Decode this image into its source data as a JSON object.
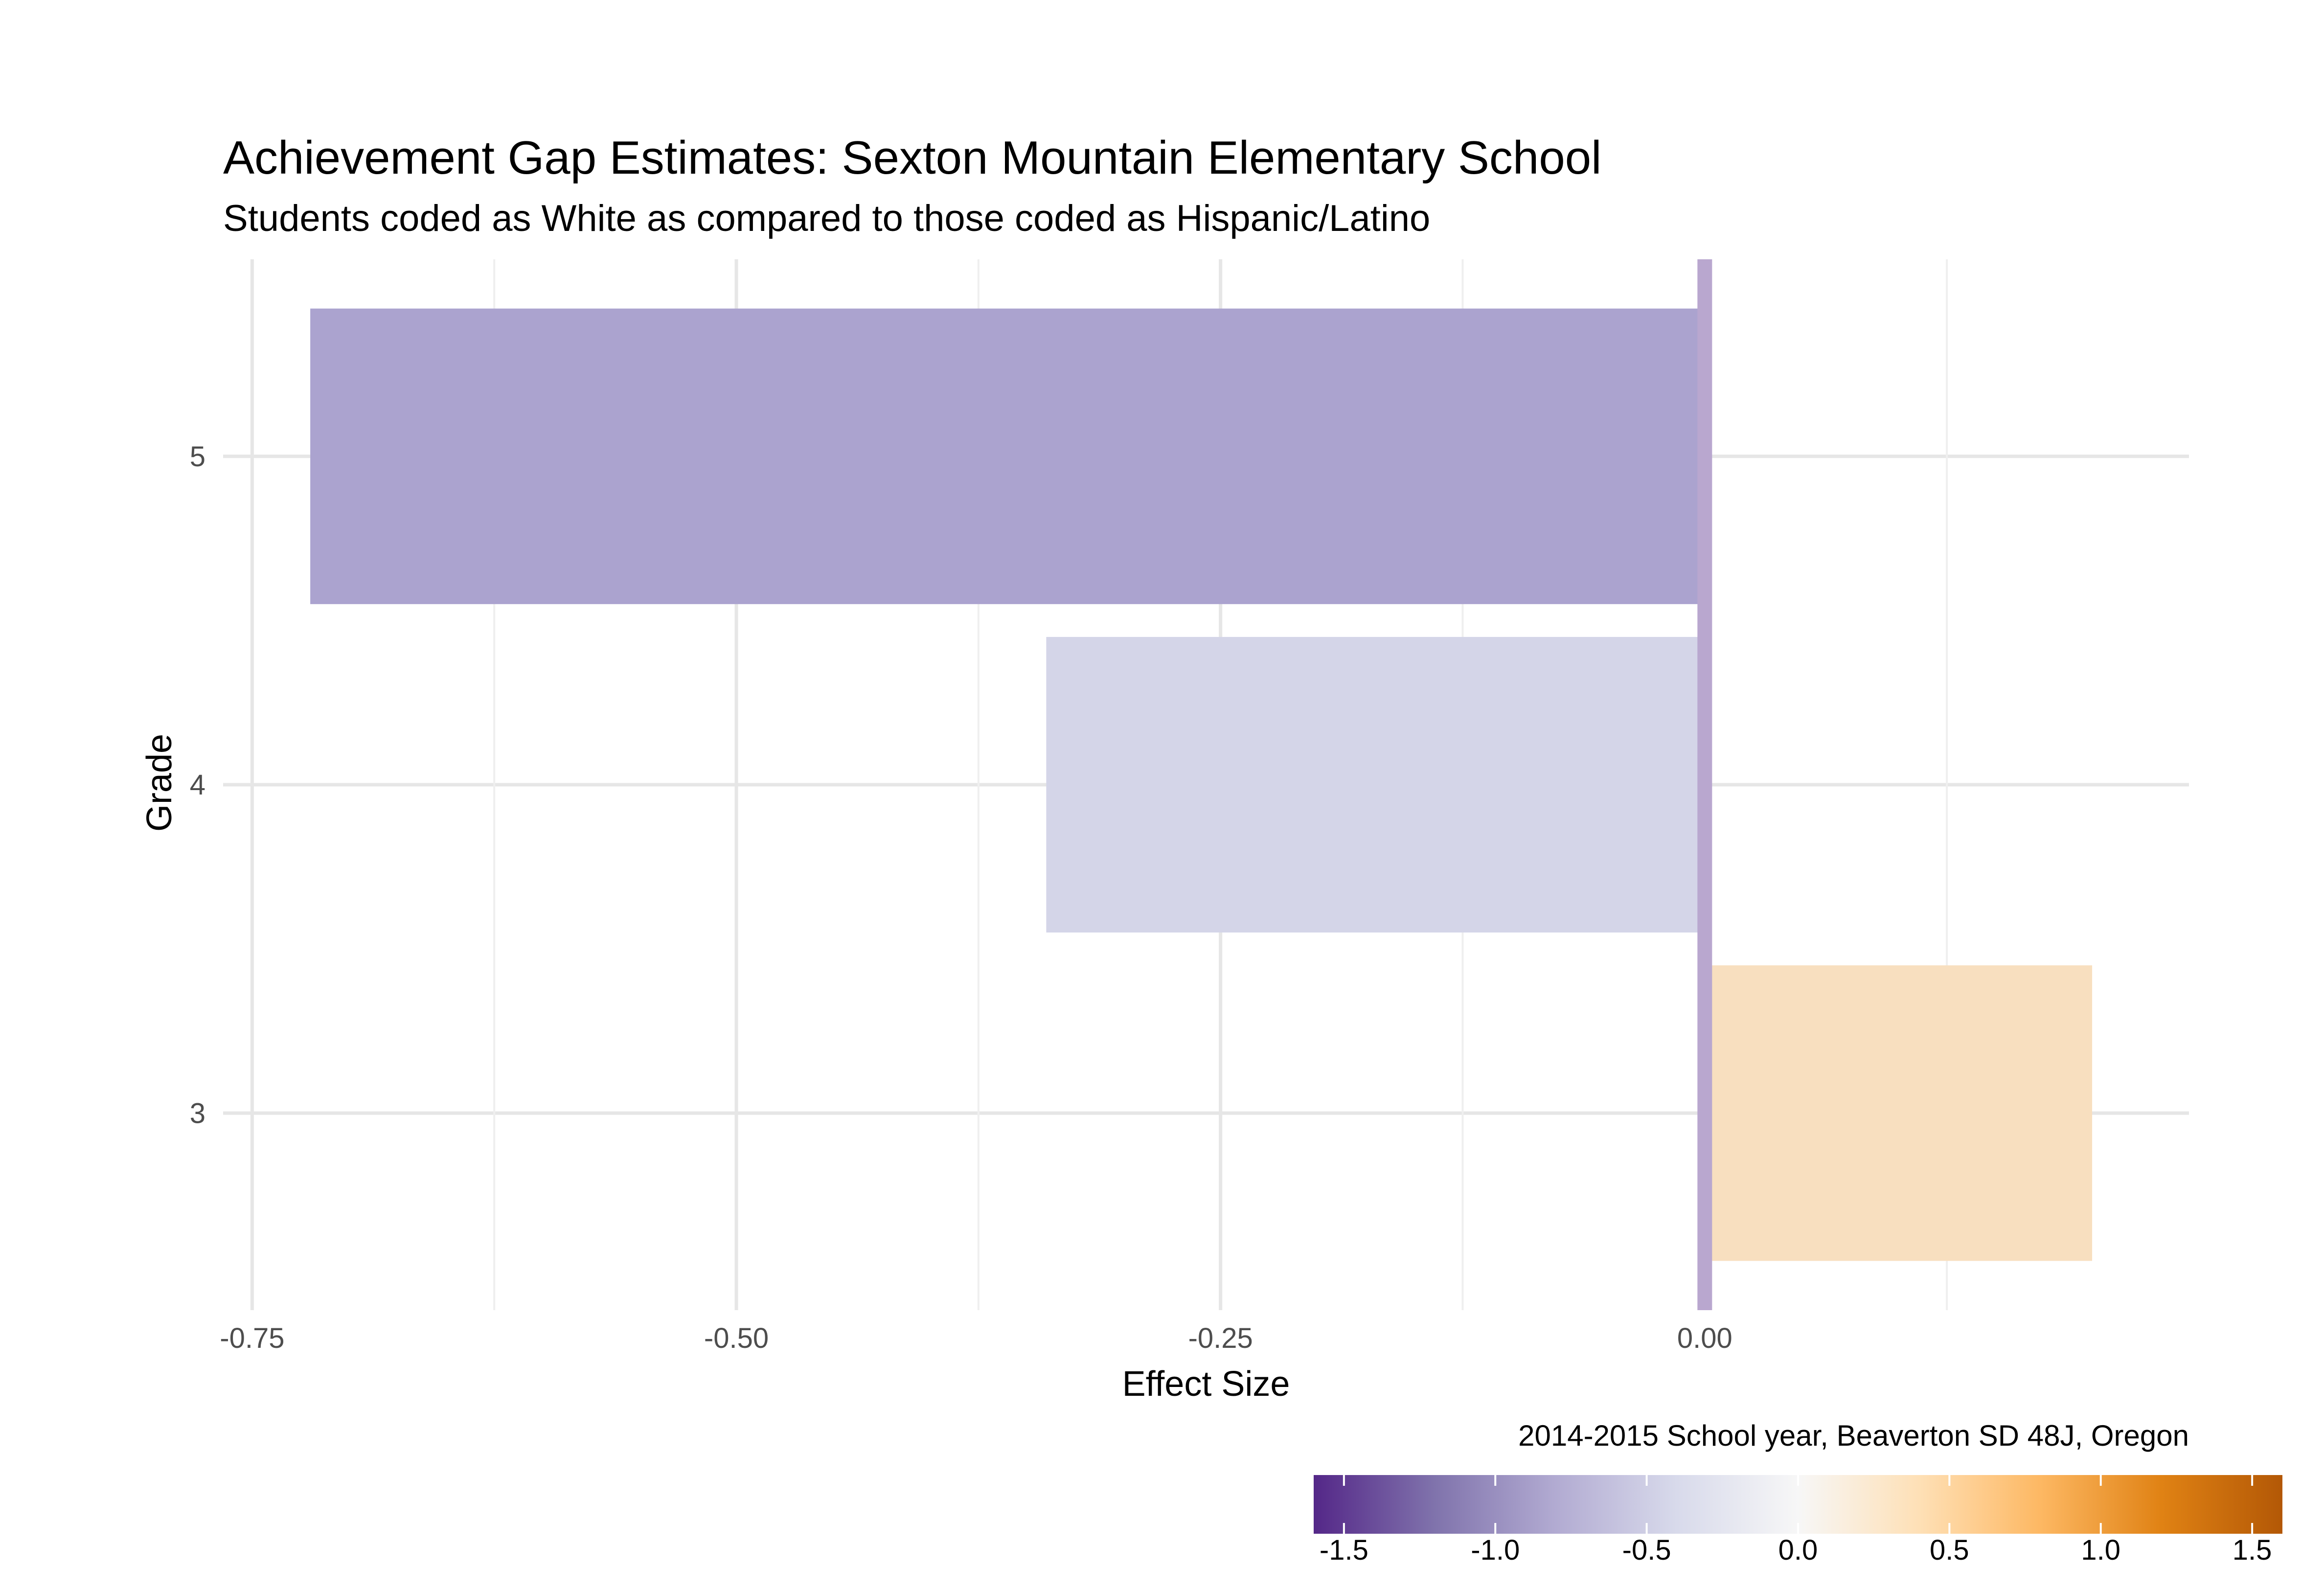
{
  "chart_data": {
    "type": "bar",
    "orientation": "horizontal",
    "title": "Achievement Gap Estimates: Sexton Mountain Elementary School",
    "subtitle": "Students coded as White as compared to those coded as Hispanic/Latino",
    "caption": "2014-2015 School year, Beaverton SD 48J, Oregon",
    "xlabel": "Effect Size",
    "ylabel": "Grade",
    "categories": [
      "3",
      "4",
      "5"
    ],
    "values": [
      0.2,
      -0.34,
      -0.72
    ],
    "bar_colors": [
      "#f8dfbf",
      "#d4d5e8",
      "#aba3cf"
    ],
    "xlim": [
      -0.765,
      0.25
    ],
    "x_ticks": [
      -0.75,
      -0.5,
      -0.25,
      0.0
    ],
    "x_tick_labels": [
      "-0.75",
      "-0.50",
      "-0.25",
      "0.00"
    ],
    "x_minor_ticks": [
      -0.625,
      -0.375,
      -0.125,
      0.125
    ],
    "reference_line": {
      "x": 0,
      "color": "#b9a7cf"
    },
    "grid": true,
    "legend": {
      "type": "colorbar",
      "position": "bottom-right",
      "range": [
        -1.6,
        1.6
      ],
      "ticks": [
        -1.5,
        -1.0,
        -0.5,
        0.0,
        0.5,
        1.0,
        1.5
      ],
      "tick_labels": [
        "-1.5",
        "-1.0",
        "-0.5",
        "0.0",
        "0.5",
        "1.0",
        "1.5"
      ],
      "colors": [
        "#542788",
        "#8073ac",
        "#b2abd2",
        "#d8daeb",
        "#f7f7f7",
        "#fee0b6",
        "#fdb863",
        "#e08214",
        "#b35806"
      ]
    }
  }
}
